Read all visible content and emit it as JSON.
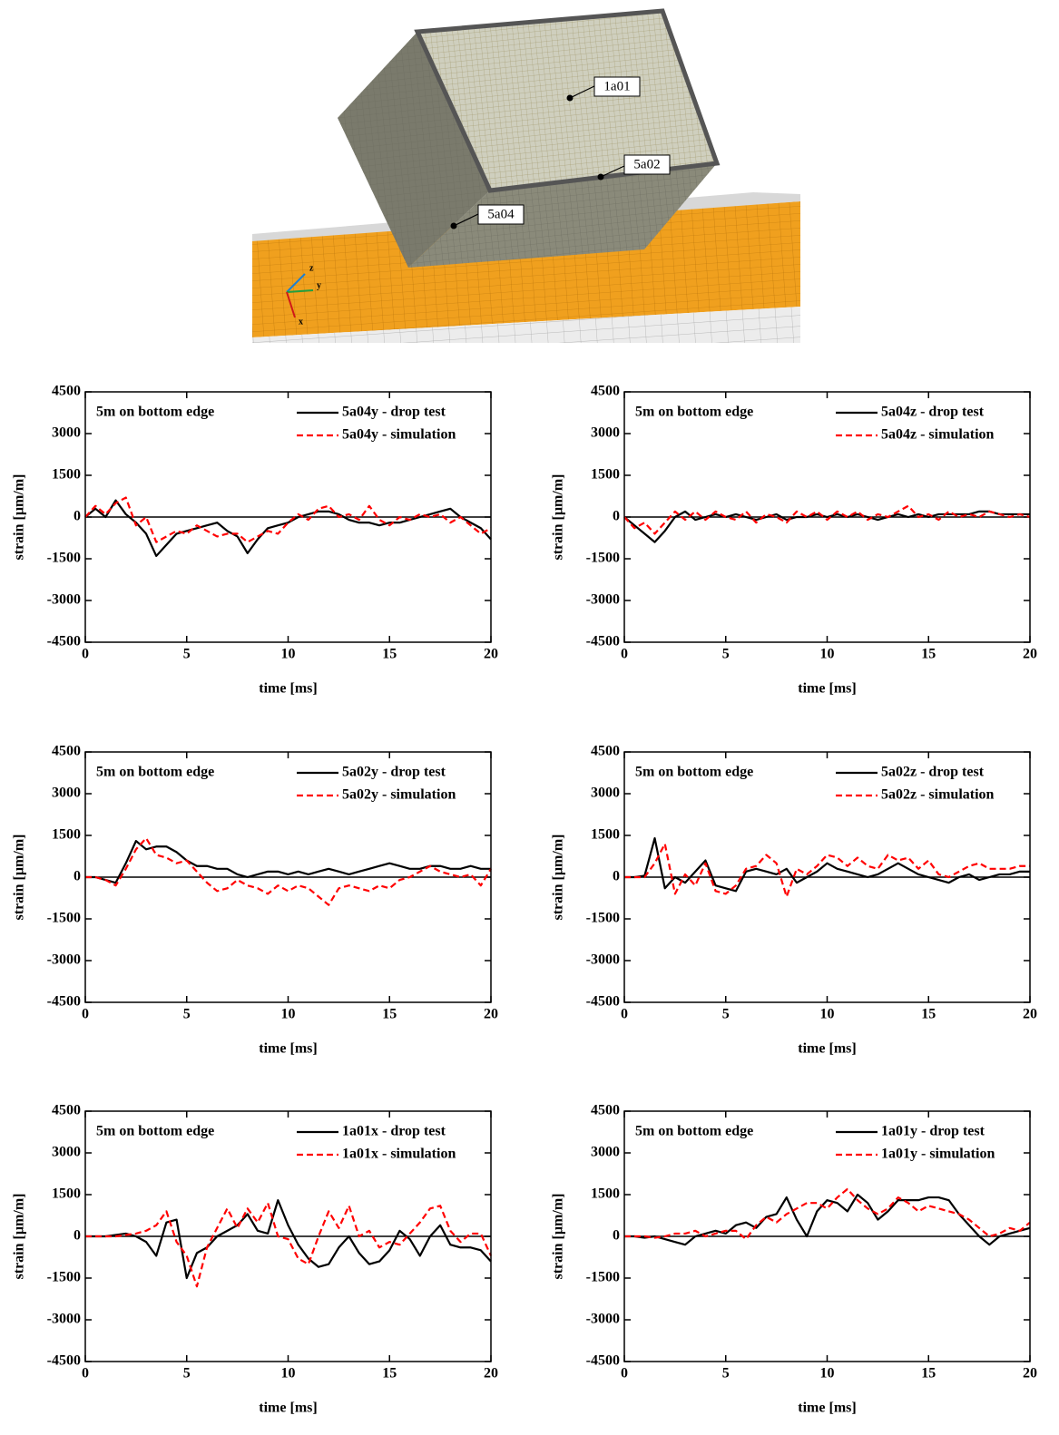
{
  "figure": {
    "points": [
      "1a01",
      "5a02",
      "5a04"
    ],
    "axes": [
      "z",
      "y",
      "x"
    ]
  },
  "chart_data": [
    {
      "type": "line",
      "annotation": "5m on bottom edge",
      "xlabel": "time [ms]",
      "ylabel": "strain [µm/m]",
      "x": [
        0,
        0.5,
        1,
        1.5,
        2,
        2.5,
        3,
        3.5,
        4,
        4.5,
        5,
        5.5,
        6,
        6.5,
        7,
        7.5,
        8,
        8.5,
        9,
        9.5,
        10,
        10.5,
        11,
        11.5,
        12,
        12.5,
        13,
        13.5,
        14,
        14.5,
        15,
        15.5,
        16,
        16.5,
        17,
        17.5,
        18,
        18.5,
        19,
        19.5,
        20
      ],
      "xlim": [
        0,
        20
      ],
      "xticks": [
        0,
        5,
        10,
        15,
        20
      ],
      "ylim": [
        -4500,
        4500
      ],
      "yticks": [
        -4500,
        -3000,
        -1500,
        0,
        1500,
        3000,
        4500
      ],
      "series": [
        {
          "name": "5a04y - drop test",
          "color": "#000000",
          "line_style": "solid",
          "values": [
            0,
            300,
            0,
            600,
            100,
            -200,
            -600,
            -1400,
            -1000,
            -600,
            -500,
            -400,
            -300,
            -200,
            -500,
            -700,
            -1300,
            -800,
            -400,
            -300,
            -200,
            0,
            100,
            200,
            200,
            100,
            -100,
            -200,
            -200,
            -300,
            -200,
            -200,
            -100,
            0,
            100,
            200,
            300,
            0,
            -200,
            -400,
            -800
          ]
        },
        {
          "name": "5a04y - simulation",
          "color": "#ff0000",
          "line_style": "dashed",
          "values": [
            0,
            400,
            100,
            500,
            700,
            -300,
            0,
            -900,
            -700,
            -500,
            -600,
            -300,
            -500,
            -700,
            -600,
            -600,
            -900,
            -700,
            -500,
            -600,
            -200,
            100,
            -100,
            300,
            400,
            0,
            100,
            -100,
            400,
            -100,
            -300,
            0,
            -100,
            100,
            0,
            100,
            -200,
            0,
            -300,
            -600,
            -400
          ]
        }
      ]
    },
    {
      "type": "line",
      "annotation": "5m on bottom edge",
      "xlabel": "time [ms]",
      "ylabel": "strain [µm/m]",
      "x": [
        0,
        0.5,
        1,
        1.5,
        2,
        2.5,
        3,
        3.5,
        4,
        4.5,
        5,
        5.5,
        6,
        6.5,
        7,
        7.5,
        8,
        8.5,
        9,
        9.5,
        10,
        10.5,
        11,
        11.5,
        12,
        12.5,
        13,
        13.5,
        14,
        14.5,
        15,
        15.5,
        16,
        16.5,
        17,
        17.5,
        18,
        18.5,
        19,
        19.5,
        20
      ],
      "xlim": [
        0,
        20
      ],
      "xticks": [
        0,
        5,
        10,
        15,
        20
      ],
      "ylim": [
        -4500,
        4500
      ],
      "yticks": [
        -4500,
        -3000,
        -1500,
        0,
        1500,
        3000,
        4500
      ],
      "series": [
        {
          "name": "5a04z - drop test",
          "color": "#000000",
          "line_style": "solid",
          "values": [
            0,
            -300,
            -600,
            -900,
            -500,
            0,
            200,
            -100,
            0,
            100,
            0,
            100,
            0,
            -100,
            0,
            100,
            -100,
            0,
            0,
            100,
            0,
            100,
            0,
            100,
            0,
            -100,
            0,
            100,
            0,
            100,
            0,
            100,
            100,
            100,
            100,
            200,
            200,
            100,
            100,
            100,
            100
          ]
        },
        {
          "name": "5a04z - simulation",
          "color": "#ff0000",
          "line_style": "dashed",
          "values": [
            0,
            -400,
            -200,
            -600,
            -200,
            200,
            -100,
            200,
            -100,
            200,
            0,
            -100,
            200,
            -200,
            100,
            0,
            -200,
            200,
            0,
            200,
            -100,
            200,
            0,
            200,
            -100,
            100,
            0,
            200,
            400,
            0,
            100,
            -100,
            200,
            0,
            100,
            0,
            200,
            100,
            0,
            100,
            0
          ]
        }
      ]
    },
    {
      "type": "line",
      "annotation": "5m on bottom edge",
      "xlabel": "time [ms]",
      "ylabel": "strain [µm/m]",
      "x": [
        0,
        0.5,
        1,
        1.5,
        2,
        2.5,
        3,
        3.5,
        4,
        4.5,
        5,
        5.5,
        6,
        6.5,
        7,
        7.5,
        8,
        8.5,
        9,
        9.5,
        10,
        10.5,
        11,
        11.5,
        12,
        12.5,
        13,
        13.5,
        14,
        14.5,
        15,
        15.5,
        16,
        16.5,
        17,
        17.5,
        18,
        18.5,
        19,
        19.5,
        20
      ],
      "xlim": [
        0,
        20
      ],
      "xticks": [
        0,
        5,
        10,
        15,
        20
      ],
      "ylim": [
        -4500,
        4500
      ],
      "yticks": [
        -4500,
        -3000,
        -1500,
        0,
        1500,
        3000,
        4500
      ],
      "series": [
        {
          "name": "5a02y - drop test",
          "color": "#000000",
          "line_style": "solid",
          "values": [
            0,
            0,
            -100,
            -200,
            500,
            1300,
            1000,
            1100,
            1100,
            900,
            600,
            400,
            400,
            300,
            300,
            100,
            0,
            100,
            200,
            200,
            100,
            200,
            100,
            200,
            300,
            200,
            100,
            200,
            300,
            400,
            500,
            400,
            300,
            300,
            400,
            400,
            300,
            300,
            400,
            300,
            300
          ]
        },
        {
          "name": "5a02y - simulation",
          "color": "#ff0000",
          "line_style": "dashed",
          "values": [
            0,
            0,
            -100,
            -300,
            300,
            1000,
            1400,
            800,
            700,
            500,
            600,
            200,
            -200,
            -500,
            -400,
            -100,
            -300,
            -400,
            -600,
            -300,
            -500,
            -300,
            -400,
            -700,
            -1000,
            -400,
            -300,
            -400,
            -500,
            -300,
            -400,
            -100,
            0,
            200,
            400,
            200,
            100,
            0,
            100,
            -300,
            300
          ]
        }
      ]
    },
    {
      "type": "line",
      "annotation": "5m on bottom edge",
      "xlabel": "time [ms]",
      "ylabel": "strain [µm/m]",
      "x": [
        0,
        0.5,
        1,
        1.5,
        2,
        2.5,
        3,
        3.5,
        4,
        4.5,
        5,
        5.5,
        6,
        6.5,
        7,
        7.5,
        8,
        8.5,
        9,
        9.5,
        10,
        10.5,
        11,
        11.5,
        12,
        12.5,
        13,
        13.5,
        14,
        14.5,
        15,
        15.5,
        16,
        16.5,
        17,
        17.5,
        18,
        18.5,
        19,
        19.5,
        20
      ],
      "xlim": [
        0,
        20
      ],
      "xticks": [
        0,
        5,
        10,
        15,
        20
      ],
      "ylim": [
        -4500,
        4500
      ],
      "yticks": [
        -4500,
        -3000,
        -1500,
        0,
        1500,
        3000,
        4500
      ],
      "series": [
        {
          "name": "5a02z - drop test",
          "color": "#000000",
          "line_style": "solid",
          "values": [
            0,
            0,
            50,
            1400,
            -400,
            0,
            -200,
            200,
            600,
            -300,
            -400,
            -500,
            200,
            300,
            200,
            100,
            300,
            -200,
            0,
            200,
            500,
            300,
            200,
            100,
            0,
            100,
            300,
            500,
            300,
            100,
            0,
            -100,
            -200,
            0,
            100,
            -100,
            0,
            100,
            100,
            200,
            200
          ]
        },
        {
          "name": "5a02z - simulation",
          "color": "#ff0000",
          "line_style": "dashed",
          "values": [
            0,
            0,
            0,
            500,
            1200,
            -600,
            100,
            -300,
            500,
            -500,
            -600,
            -300,
            300,
            400,
            800,
            500,
            -700,
            300,
            100,
            400,
            800,
            700,
            400,
            700,
            400,
            300,
            800,
            600,
            700,
            300,
            600,
            100,
            0,
            200,
            400,
            500,
            300,
            300,
            300,
            400,
            400
          ]
        }
      ]
    },
    {
      "type": "line",
      "annotation": "5m on bottom edge",
      "xlabel": "time [ms]",
      "ylabel": "strain [µm/m]",
      "x": [
        0,
        0.5,
        1,
        1.5,
        2,
        2.5,
        3,
        3.5,
        4,
        4.5,
        5,
        5.5,
        6,
        6.5,
        7,
        7.5,
        8,
        8.5,
        9,
        9.5,
        10,
        10.5,
        11,
        11.5,
        12,
        12.5,
        13,
        13.5,
        14,
        14.5,
        15,
        15.5,
        16,
        16.5,
        17,
        17.5,
        18,
        18.5,
        19,
        19.5,
        20
      ],
      "xlim": [
        0,
        20
      ],
      "xticks": [
        0,
        5,
        10,
        15,
        20
      ],
      "ylim": [
        -4500,
        4500
      ],
      "yticks": [
        -4500,
        -3000,
        -1500,
        0,
        1500,
        3000,
        4500
      ],
      "series": [
        {
          "name": "1a01x - drop test",
          "color": "#000000",
          "line_style": "solid",
          "values": [
            0,
            0,
            0,
            50,
            100,
            0,
            -200,
            -700,
            500,
            600,
            -1500,
            -600,
            -400,
            0,
            200,
            400,
            800,
            200,
            100,
            1300,
            400,
            -300,
            -800,
            -1100,
            -1000,
            -400,
            0,
            -600,
            -1000,
            -900,
            -500,
            200,
            -100,
            -700,
            0,
            400,
            -300,
            -400,
            -400,
            -500,
            -900
          ]
        },
        {
          "name": "1a01x - simulation",
          "color": "#ff0000",
          "line_style": "dashed",
          "values": [
            0,
            0,
            0,
            0,
            50,
            100,
            200,
            400,
            900,
            -200,
            -700,
            -1800,
            -400,
            300,
            1000,
            300,
            1000,
            500,
            1200,
            0,
            -100,
            -800,
            -1000,
            0,
            900,
            300,
            1100,
            0,
            200,
            -400,
            -200,
            -300,
            100,
            500,
            1000,
            1100,
            200,
            -200,
            100,
            100,
            -700
          ]
        }
      ]
    },
    {
      "type": "line",
      "annotation": "5m on bottom edge",
      "xlabel": "time [ms]",
      "ylabel": "strain [µm/m]",
      "x": [
        0,
        0.5,
        1,
        1.5,
        2,
        2.5,
        3,
        3.5,
        4,
        4.5,
        5,
        5.5,
        6,
        6.5,
        7,
        7.5,
        8,
        8.5,
        9,
        9.5,
        10,
        10.5,
        11,
        11.5,
        12,
        12.5,
        13,
        13.5,
        14,
        14.5,
        15,
        15.5,
        16,
        16.5,
        17,
        17.5,
        18,
        18.5,
        19,
        19.5,
        20
      ],
      "xlim": [
        0,
        20
      ],
      "xticks": [
        0,
        5,
        10,
        15,
        20
      ],
      "ylim": [
        -4500,
        4500
      ],
      "yticks": [
        -4500,
        -3000,
        -1500,
        0,
        1500,
        3000,
        4500
      ],
      "series": [
        {
          "name": "1a01y - drop test",
          "color": "#000000",
          "line_style": "solid",
          "values": [
            0,
            0,
            -50,
            0,
            -100,
            -200,
            -300,
            0,
            100,
            200,
            100,
            400,
            500,
            300,
            700,
            800,
            1400,
            600,
            0,
            900,
            1300,
            1200,
            900,
            1500,
            1200,
            600,
            900,
            1300,
            1300,
            1300,
            1400,
            1400,
            1300,
            800,
            400,
            0,
            -300,
            0,
            100,
            200,
            300
          ]
        },
        {
          "name": "1a01y - simulation",
          "color": "#ff0000",
          "line_style": "dashed",
          "values": [
            0,
            0,
            0,
            -50,
            0,
            100,
            100,
            200,
            0,
            100,
            200,
            200,
            -100,
            400,
            700,
            500,
            800,
            1000,
            1200,
            1200,
            1000,
            1400,
            1700,
            1300,
            1000,
            800,
            1000,
            1400,
            1200,
            900,
            1100,
            1000,
            900,
            800,
            600,
            300,
            0,
            100,
            300,
            200,
            500
          ]
        }
      ]
    }
  ]
}
